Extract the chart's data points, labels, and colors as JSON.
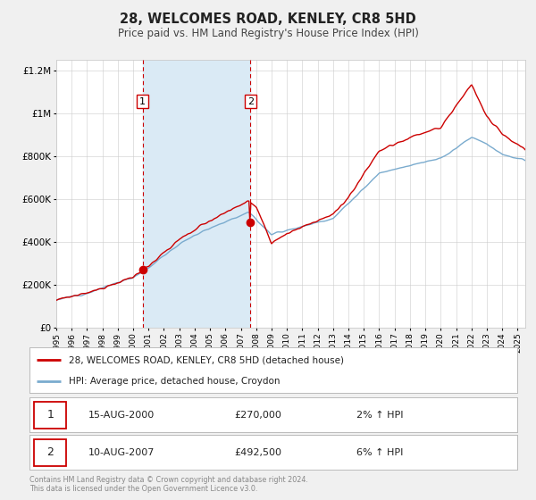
{
  "title": "28, WELCOMES ROAD, KENLEY, CR8 5HD",
  "subtitle": "Price paid vs. HM Land Registry's House Price Index (HPI)",
  "legend_line1": "28, WELCOMES ROAD, KENLEY, CR8 5HD (detached house)",
  "legend_line2": "HPI: Average price, detached house, Croydon",
  "transaction1_label": "1",
  "transaction1_date": "15-AUG-2000",
  "transaction1_price": "£270,000",
  "transaction1_pct": "2% ↑ HPI",
  "transaction1_year": 2000.62,
  "transaction1_value": 270000,
  "transaction2_label": "2",
  "transaction2_date": "10-AUG-2007",
  "transaction2_price": "£492,500",
  "transaction2_pct": "6% ↑ HPI",
  "transaction2_year": 2007.62,
  "transaction2_value": 492500,
  "footer_line1": "Contains HM Land Registry data © Crown copyright and database right 2024.",
  "footer_line2": "This data is licensed under the Open Government Licence v3.0.",
  "hpi_color": "#7aabce",
  "price_color": "#cc0000",
  "bg_color": "#f0f0f0",
  "plot_bg": "#ffffff",
  "shaded_region_color": "#daeaf5",
  "ylim_max": 1250000,
  "ylim_min": 0,
  "yticks": [
    0,
    200000,
    400000,
    600000,
    800000,
    1000000,
    1200000
  ],
  "ytick_labels": [
    "£0",
    "£200K",
    "£400K",
    "£600K",
    "£800K",
    "£1M",
    "£1.2M"
  ],
  "xmin": 1995,
  "xmax": 2025.5
}
